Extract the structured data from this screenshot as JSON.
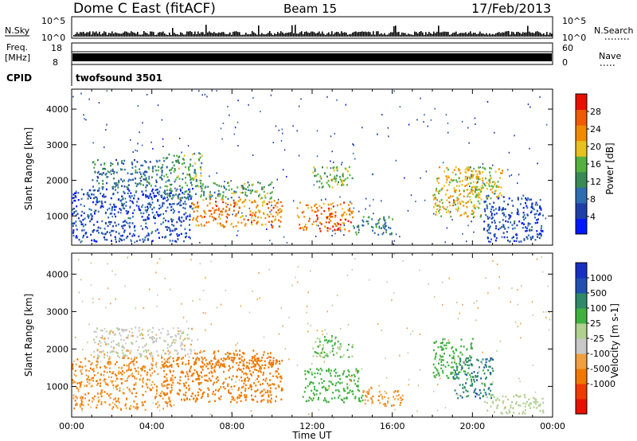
{
  "header": {
    "title": "Dome C East (fitACF)",
    "beam": "Beam 15",
    "date": "17/Feb/2013"
  },
  "summary_panels": {
    "nsky": {
      "label": "N.Sky",
      "tick_top": "10^5",
      "tick_bottom": "10^0",
      "right_label": "N.Search",
      "right_tick_top": "10^5",
      "right_tick_bottom": "10^0"
    },
    "freq": {
      "label_line1": "Freq.",
      "label_line2": "[MHz]",
      "tick_top": "18",
      "tick_bottom": "8",
      "right_label": "Nave",
      "right_tick_top": "60",
      "right_tick_bottom": "0"
    },
    "cpid": {
      "label": "CPID",
      "value": "twofsound 3501"
    }
  },
  "colors": {
    "power_scale": [
      "#0018ff",
      "#1f3fa8",
      "#2e6db0",
      "#3a8a55",
      "#55b03e",
      "#e8c020",
      "#f08a00",
      "#f05a00",
      "#e81000"
    ],
    "velocity_scale": [
      "#e81000",
      "#f03a00",
      "#f07800",
      "#f0a040",
      "#c8c8c8",
      "#b0d090",
      "#40b040",
      "#2e8a6a",
      "#2050b0",
      "#1830c0"
    ]
  },
  "chart_data": [
    {
      "type": "heatmap",
      "name": "power",
      "xlabel": "",
      "ylabel": "Slant Range [km]",
      "colorbar_label": "Power [dB]",
      "colorbar_ticks": [
        "28",
        "24",
        "20",
        "16",
        "12",
        "8",
        "4"
      ],
      "x_ticks": [
        "00:00",
        "04:00",
        "08:00",
        "12:00",
        "16:00",
        "20:00",
        "00:00"
      ],
      "y_ticks": [
        "1000",
        "2000",
        "3000",
        "4000"
      ],
      "xlim_hours": [
        0,
        24
      ],
      "ylim_km": [
        180,
        4560
      ],
      "colorbar_range": [
        0,
        32
      ],
      "regions": [
        {
          "t0": 0.0,
          "t1": 6.0,
          "r0": 300,
          "r1": 1800,
          "power": 6
        },
        {
          "t0": 1.0,
          "t1": 4.5,
          "r0": 1800,
          "r1": 2600,
          "power": 10
        },
        {
          "t0": 4.5,
          "t1": 6.5,
          "r0": 1500,
          "r1": 2800,
          "power": 14
        },
        {
          "t0": 6.0,
          "t1": 10.5,
          "r0": 700,
          "r1": 1500,
          "power": 24
        },
        {
          "t0": 6.5,
          "t1": 10.0,
          "r0": 1500,
          "r1": 2000,
          "power": 14
        },
        {
          "t0": 11.2,
          "t1": 14.0,
          "r0": 600,
          "r1": 1400,
          "power": 25
        },
        {
          "t0": 12.0,
          "t1": 14.0,
          "r0": 1800,
          "r1": 2400,
          "power": 16
        },
        {
          "t0": 14.0,
          "t1": 16.0,
          "r0": 500,
          "r1": 1000,
          "power": 12
        },
        {
          "t0": 18.0,
          "t1": 20.5,
          "r0": 1000,
          "r1": 2400,
          "power": 20
        },
        {
          "t0": 19.5,
          "t1": 21.5,
          "r0": 1500,
          "r1": 2400,
          "power": 18
        },
        {
          "t0": 20.5,
          "t1": 23.5,
          "r0": 300,
          "r1": 1600,
          "power": 6
        }
      ]
    },
    {
      "type": "heatmap",
      "name": "velocity",
      "xlabel": "Time UT",
      "ylabel": "Slant Range [km]",
      "colorbar_label": "Velocity [m s-1]",
      "colorbar_ticks": [
        "1000",
        "500",
        "100",
        "25",
        "-25",
        "-100",
        "-500",
        "-1000"
      ],
      "x_ticks": [
        "00:00",
        "04:00",
        "08:00",
        "12:00",
        "16:00",
        "20:00",
        "00:00"
      ],
      "y_ticks": [
        "1000",
        "2000",
        "3000",
        "4000"
      ],
      "xlim_hours": [
        0,
        24
      ],
      "ylim_km": [
        180,
        4560
      ],
      "regions": [
        {
          "t0": 0.0,
          "t1": 5.0,
          "r0": 400,
          "r1": 1800,
          "velocity": -100
        },
        {
          "t0": 1.0,
          "t1": 6.0,
          "r0": 1800,
          "r1": 2600,
          "velocity": 0
        },
        {
          "t0": 4.5,
          "t1": 10.5,
          "r0": 600,
          "r1": 1800,
          "velocity": -300
        },
        {
          "t0": 6.0,
          "t1": 10.0,
          "r0": 1500,
          "r1": 2000,
          "velocity": -200
        },
        {
          "t0": 11.5,
          "t1": 14.5,
          "r0": 600,
          "r1": 1500,
          "velocity": 300
        },
        {
          "t0": 12.0,
          "t1": 14.0,
          "r0": 1800,
          "r1": 2400,
          "velocity": 100
        },
        {
          "t0": 14.5,
          "t1": 16.5,
          "r0": 500,
          "r1": 1000,
          "velocity": -80
        },
        {
          "t0": 18.0,
          "t1": 20.0,
          "r0": 1200,
          "r1": 2300,
          "velocity": 200
        },
        {
          "t0": 19.0,
          "t1": 21.0,
          "r0": 700,
          "r1": 1800,
          "velocity": 800
        },
        {
          "t0": 20.5,
          "t1": 23.5,
          "r0": 300,
          "r1": 800,
          "velocity": 60
        }
      ]
    }
  ]
}
